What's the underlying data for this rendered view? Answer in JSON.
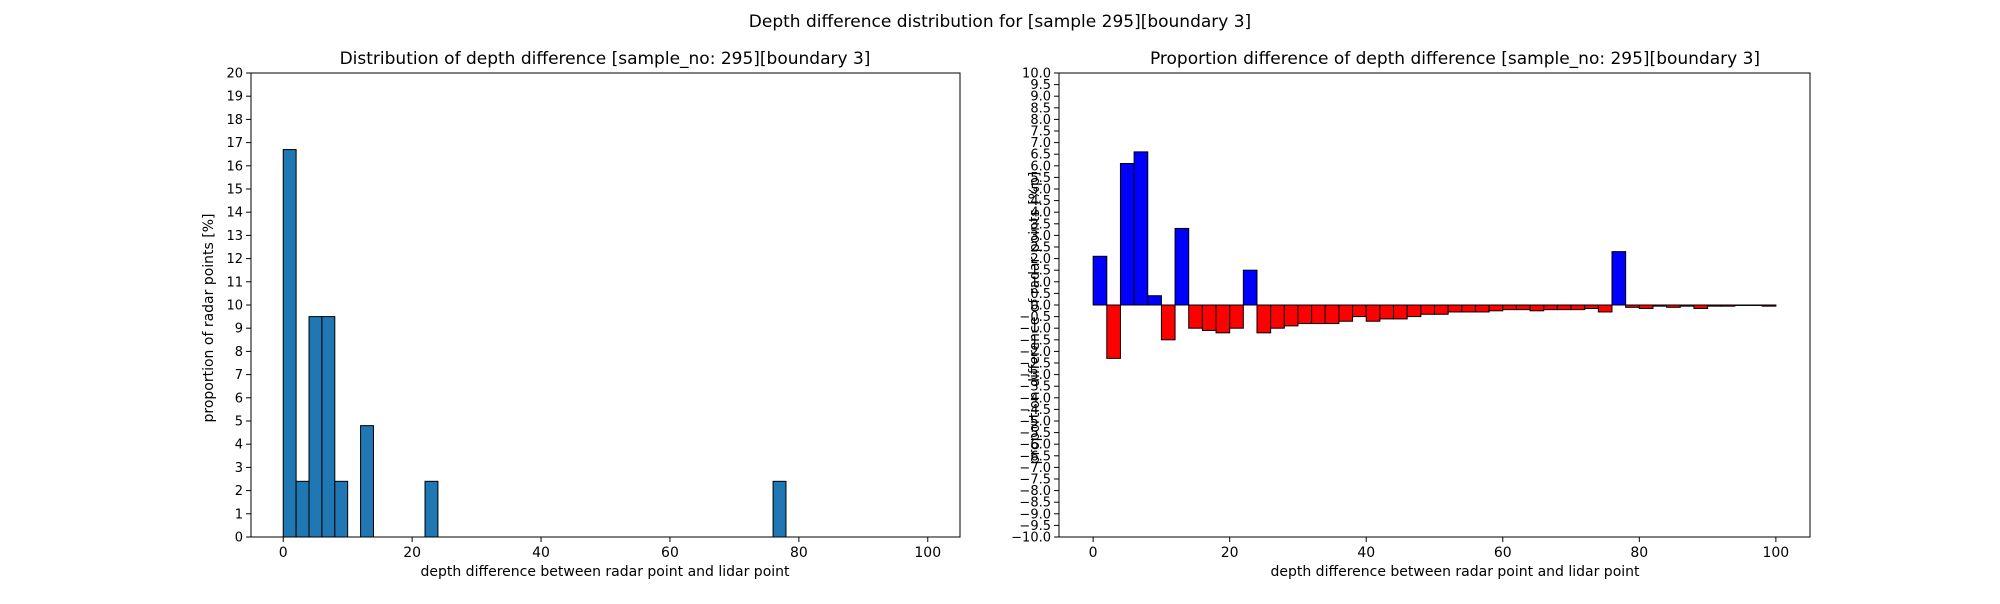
{
  "suptitle": "Depth difference distribution for [sample 295][boundary 3]",
  "chart_data": [
    {
      "type": "bar",
      "title": "Distribution of depth difference [sample_no: 295][boundary 3]",
      "xlabel": "depth difference between radar point and lidar point",
      "ylabel": "proportion of radar points [%]",
      "xlim": [
        -5,
        105
      ],
      "ylim": [
        0,
        20
      ],
      "xticks": [
        0,
        20,
        40,
        60,
        80,
        100
      ],
      "yticks": [
        0,
        1,
        2,
        3,
        4,
        5,
        6,
        7,
        8,
        9,
        10,
        11,
        12,
        13,
        14,
        15,
        16,
        17,
        18,
        19,
        20
      ],
      "bin_width": 2,
      "bar_color": "#1f77b4",
      "x": [
        0,
        2,
        4,
        6,
        8,
        12,
        22,
        76
      ],
      "values": [
        16.7,
        2.4,
        9.5,
        9.5,
        2.4,
        4.8,
        2.4,
        2.4
      ]
    },
    {
      "type": "bar",
      "title": "Proportion difference of depth difference [sample_no: 295][boundary 3]",
      "xlabel": "depth difference between radar point and lidar point",
      "ylabel": "proportion difference of radar points [%p]",
      "xlim": [
        -5,
        105
      ],
      "ylim": [
        -10,
        10
      ],
      "xticks": [
        0,
        20,
        40,
        60,
        80,
        100
      ],
      "ytick_step": 0.5,
      "bin_width": 2,
      "positive_color": "#0000ff",
      "negative_color": "#ff0000",
      "x": [
        0,
        2,
        4,
        6,
        8,
        10,
        12,
        14,
        16,
        18,
        20,
        22,
        24,
        26,
        28,
        30,
        32,
        34,
        36,
        38,
        40,
        42,
        44,
        46,
        48,
        50,
        52,
        54,
        56,
        58,
        60,
        62,
        64,
        66,
        68,
        70,
        72,
        74,
        76,
        78,
        80,
        82,
        84,
        86,
        88,
        90,
        92,
        94,
        96,
        98
      ],
      "values": [
        2.1,
        -2.3,
        6.1,
        6.6,
        0.4,
        -1.5,
        3.3,
        -1.0,
        -1.1,
        -1.2,
        -1.0,
        1.5,
        -1.2,
        -1.0,
        -0.9,
        -0.8,
        -0.8,
        -0.8,
        -0.7,
        -0.5,
        -0.7,
        -0.6,
        -0.6,
        -0.5,
        -0.4,
        -0.4,
        -0.3,
        -0.3,
        -0.3,
        -0.25,
        -0.2,
        -0.2,
        -0.25,
        -0.2,
        -0.2,
        -0.2,
        -0.15,
        -0.3,
        2.3,
        -0.1,
        -0.15,
        -0.05,
        -0.1,
        -0.05,
        -0.15,
        -0.05,
        -0.05,
        -0.02,
        -0.02,
        -0.05
      ]
    }
  ]
}
